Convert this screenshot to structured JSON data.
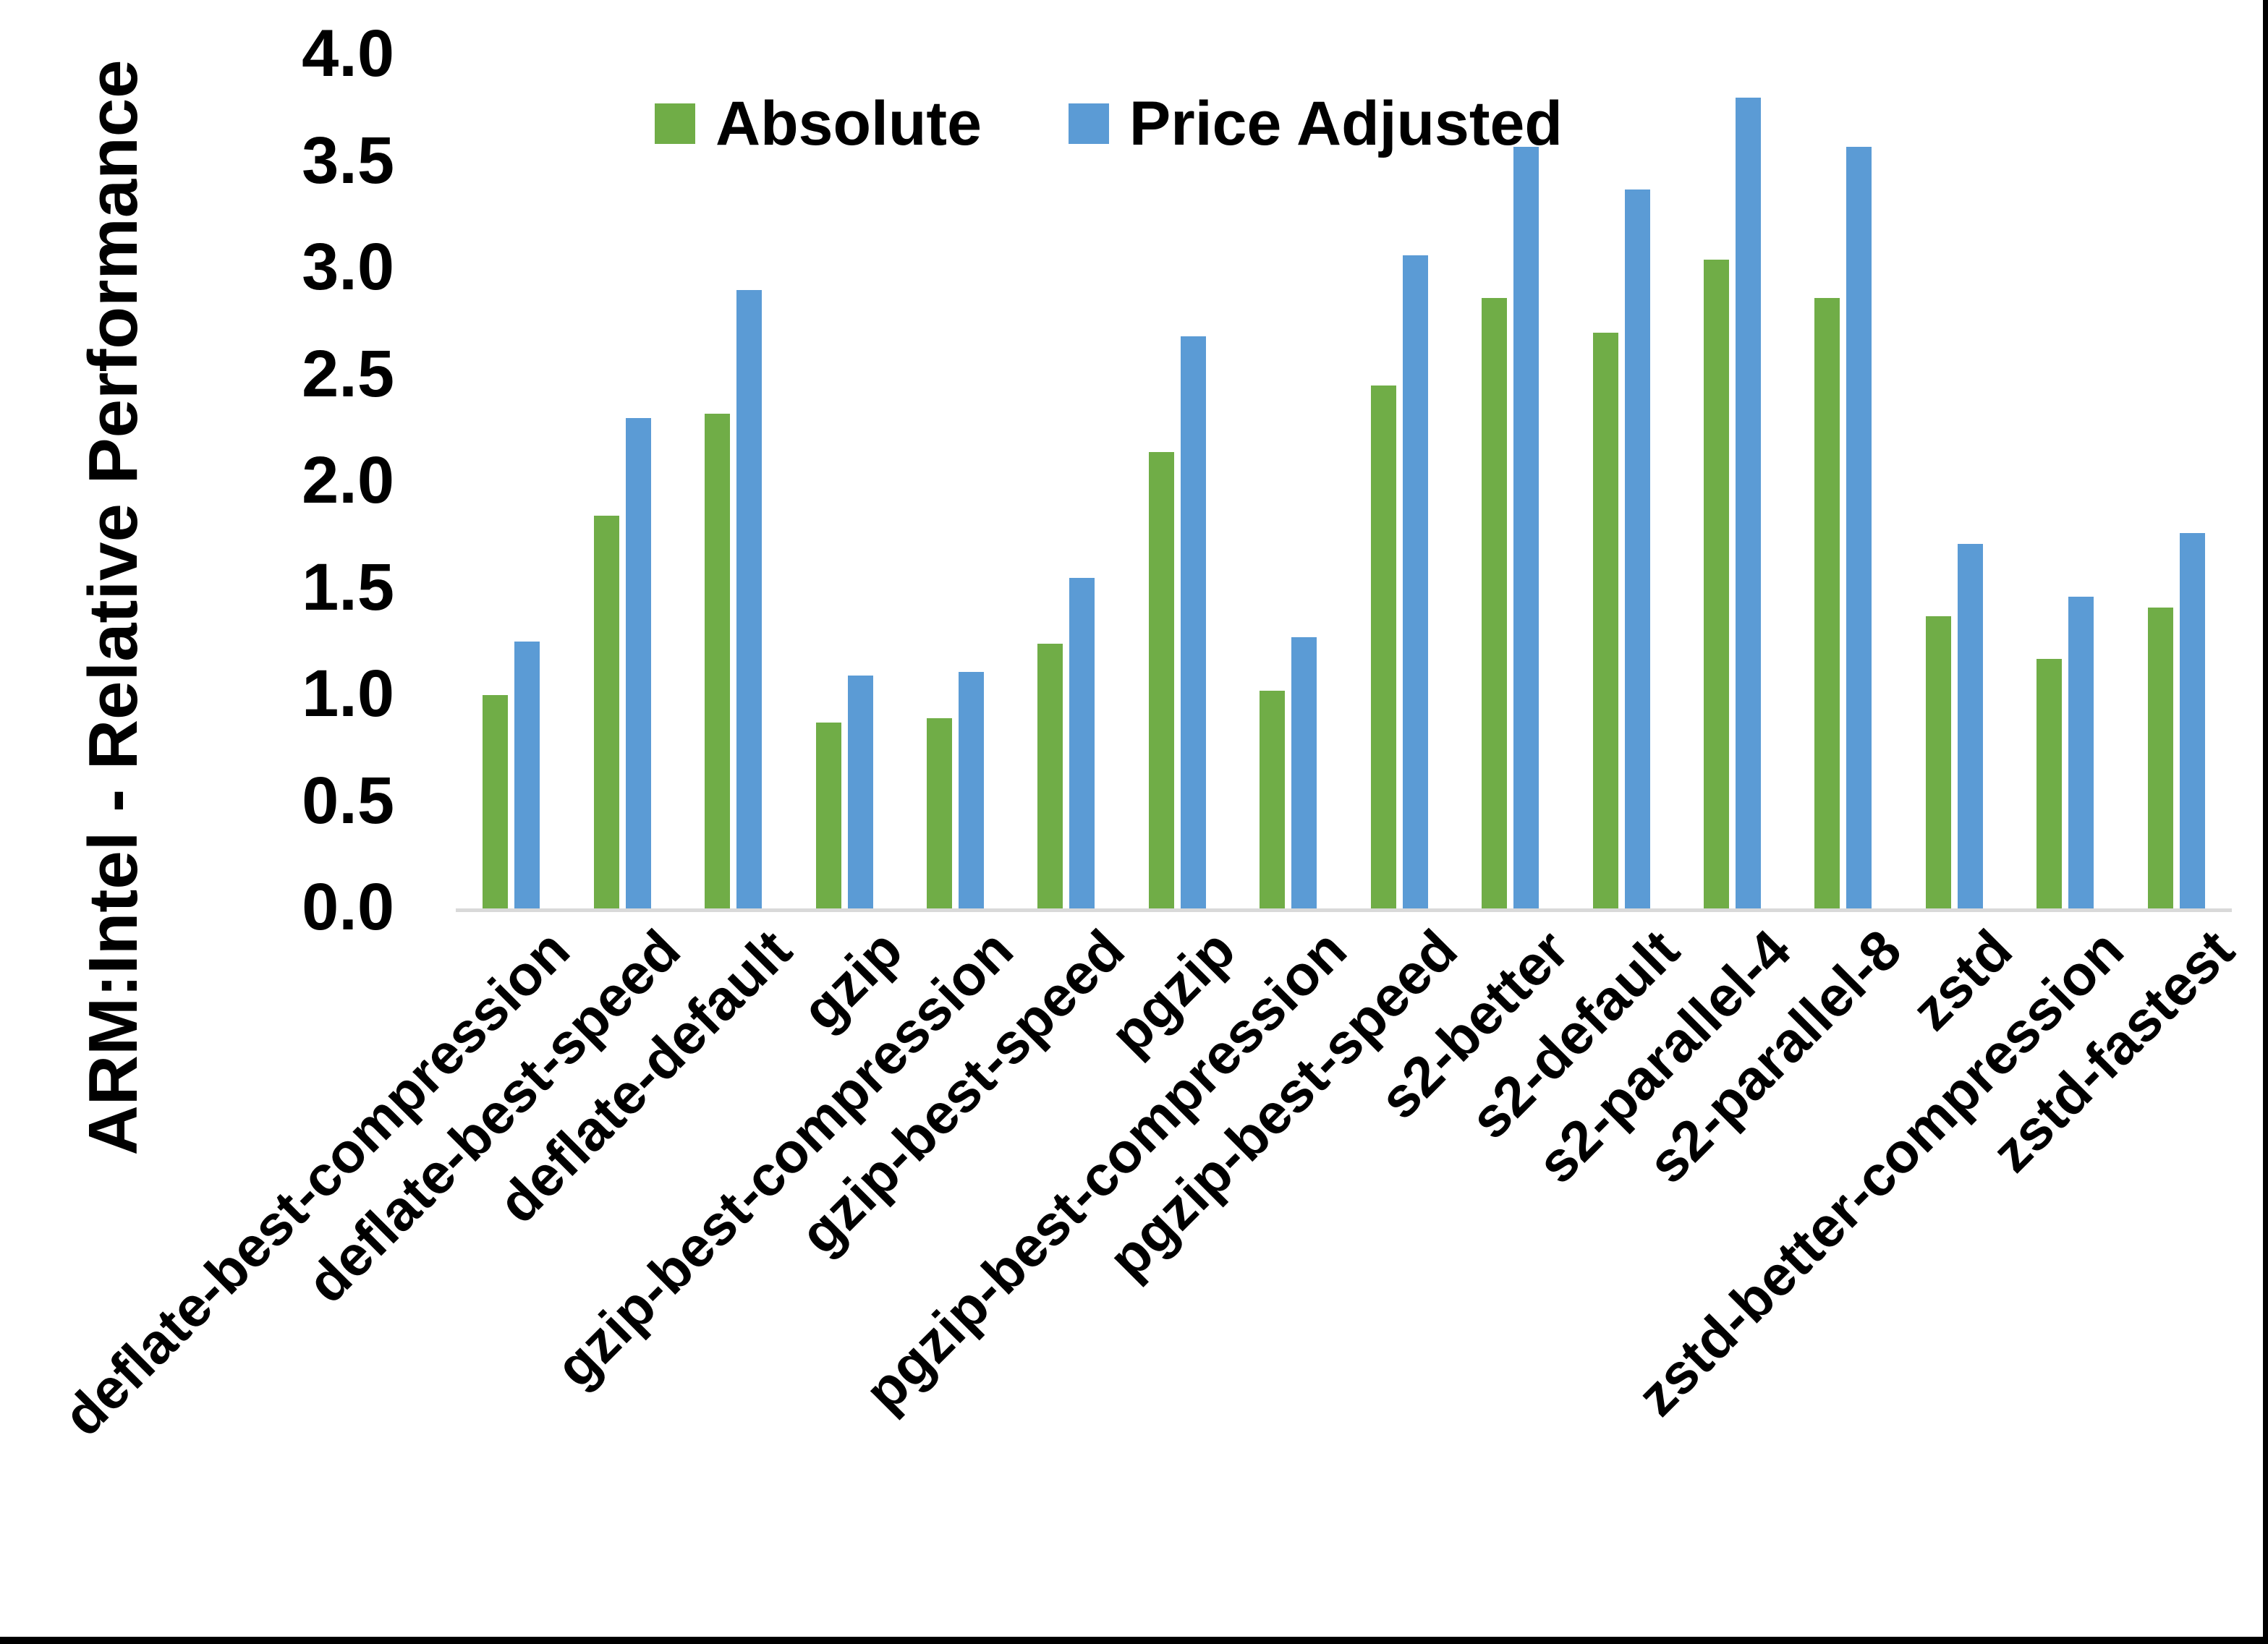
{
  "chart_data": {
    "type": "bar",
    "title": "",
    "xlabel": "",
    "ylabel": "ARM:Intel - Relative Performance",
    "ylim": [
      0.0,
      4.0
    ],
    "ytick_step": 0.5,
    "ytick_labels": [
      "0.0",
      "0.5",
      "1.0",
      "1.5",
      "2.0",
      "2.5",
      "3.0",
      "3.5",
      "4.0"
    ],
    "grid": false,
    "legend_position": "top-center",
    "axis_line_color": "#d9d9d9",
    "categories": [
      "deflate-best-compression",
      "deflate-best-speed",
      "deflate-default",
      "gzip",
      "gzip-best-compression",
      "gzip-best-speed",
      "pgzip",
      "pgzip-best-compression",
      "pgzip-best-speed",
      "s2-better",
      "s2-default",
      "s2-parallel-4",
      "s2-parallel-8",
      "zstd",
      "zstd-better-compression",
      "zstd-fastest"
    ],
    "series": [
      {
        "name": "Absolute",
        "color": "#70AD47",
        "values": [
          1.0,
          1.84,
          2.32,
          0.87,
          0.89,
          1.24,
          2.14,
          1.02,
          2.45,
          2.86,
          2.7,
          3.04,
          2.86,
          1.37,
          1.17,
          1.41
        ]
      },
      {
        "name": "Price Adjusted",
        "color": "#5B9BD5",
        "values": [
          1.25,
          2.3,
          2.9,
          1.09,
          1.11,
          1.55,
          2.68,
          1.27,
          3.06,
          3.57,
          3.37,
          3.8,
          3.57,
          1.71,
          1.46,
          1.76
        ]
      }
    ]
  }
}
